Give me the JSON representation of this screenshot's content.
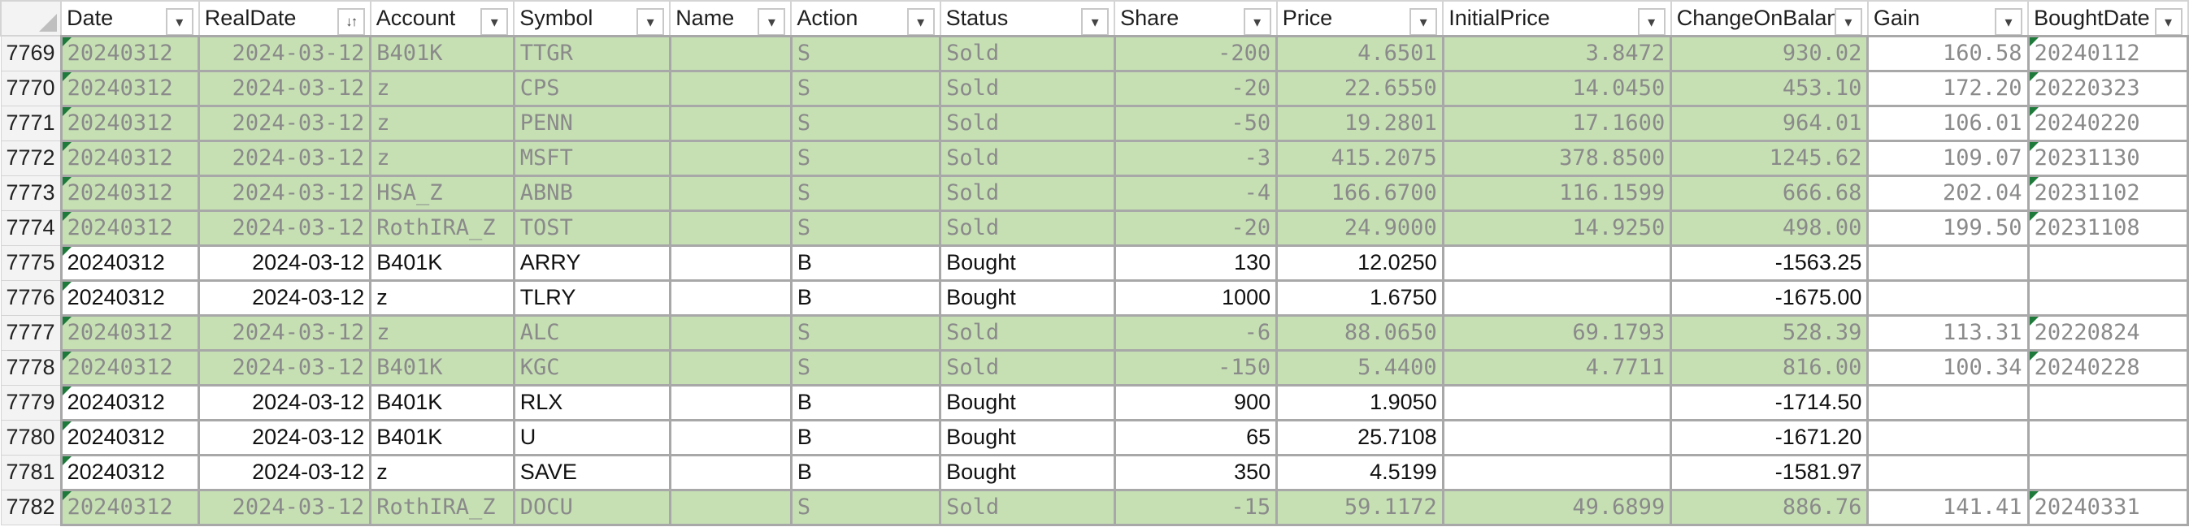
{
  "columns": [
    {
      "label": "Date",
      "sorted": false
    },
    {
      "label": "RealDate",
      "sorted": true
    },
    {
      "label": "Account",
      "sorted": false
    },
    {
      "label": "Symbol",
      "sorted": false
    },
    {
      "label": "Name",
      "sorted": false
    },
    {
      "label": "Action",
      "sorted": false
    },
    {
      "label": "Status",
      "sorted": false
    },
    {
      "label": "Share",
      "sorted": false
    },
    {
      "label": "Price",
      "sorted": false
    },
    {
      "label": "InitialPrice",
      "sorted": false
    },
    {
      "label": "ChangeOnBalance",
      "sorted": false
    },
    {
      "label": "Gain",
      "sorted": false
    },
    {
      "label": "BoughtDate",
      "sorted": false
    }
  ],
  "icons": {
    "filter_icon": "▾",
    "sort_icon": "↓↑"
  },
  "colors": {
    "sold_fill": "#c6e0b4",
    "bought_fill": "#ffffff",
    "comment_marker": "#1e7a3a"
  },
  "rows": [
    {
      "num": "7769",
      "date": "20240312",
      "real_date": "2024-03-12",
      "account": "B401K",
      "symbol": "TTGR",
      "name": "",
      "action": "S",
      "status": "Sold",
      "share": "-200",
      "price": "4.6501",
      "initial_price": "3.8472",
      "change": "930.02",
      "gain": "160.58",
      "bought_date": "20240112",
      "kind": "sold"
    },
    {
      "num": "7770",
      "date": "20240312",
      "real_date": "2024-03-12",
      "account": "z",
      "symbol": "CPS",
      "name": "",
      "action": "S",
      "status": "Sold",
      "share": "-20",
      "price": "22.6550",
      "initial_price": "14.0450",
      "change": "453.10",
      "gain": "172.20",
      "bought_date": "20220323",
      "kind": "sold"
    },
    {
      "num": "7771",
      "date": "20240312",
      "real_date": "2024-03-12",
      "account": "z",
      "symbol": "PENN",
      "name": "",
      "action": "S",
      "status": "Sold",
      "share": "-50",
      "price": "19.2801",
      "initial_price": "17.1600",
      "change": "964.01",
      "gain": "106.01",
      "bought_date": "20240220",
      "kind": "sold"
    },
    {
      "num": "7772",
      "date": "20240312",
      "real_date": "2024-03-12",
      "account": "z",
      "symbol": "MSFT",
      "name": "",
      "action": "S",
      "status": "Sold",
      "share": "-3",
      "price": "415.2075",
      "initial_price": "378.8500",
      "change": "1245.62",
      "gain": "109.07",
      "bought_date": "20231130",
      "kind": "sold"
    },
    {
      "num": "7773",
      "date": "20240312",
      "real_date": "2024-03-12",
      "account": "HSA_Z",
      "symbol": "ABNB",
      "name": "",
      "action": "S",
      "status": "Sold",
      "share": "-4",
      "price": "166.6700",
      "initial_price": "116.1599",
      "change": "666.68",
      "gain": "202.04",
      "bought_date": "20231102",
      "kind": "sold"
    },
    {
      "num": "7774",
      "date": "20240312",
      "real_date": "2024-03-12",
      "account": "RothIRA_Z",
      "symbol": "TOST",
      "name": "",
      "action": "S",
      "status": "Sold",
      "share": "-20",
      "price": "24.9000",
      "initial_price": "14.9250",
      "change": "498.00",
      "gain": "199.50",
      "bought_date": "20231108",
      "kind": "sold"
    },
    {
      "num": "7775",
      "date": "20240312",
      "real_date": "2024-03-12",
      "account": "B401K",
      "symbol": "ARRY",
      "name": "",
      "action": "B",
      "status": "Bought",
      "share": "130",
      "price": "12.0250",
      "initial_price": "",
      "change": "-1563.25",
      "gain": "",
      "bought_date": "",
      "kind": "bought"
    },
    {
      "num": "7776",
      "date": "20240312",
      "real_date": "2024-03-12",
      "account": "z",
      "symbol": "TLRY",
      "name": "",
      "action": "B",
      "status": "Bought",
      "share": "1000",
      "price": "1.6750",
      "initial_price": "",
      "change": "-1675.00",
      "gain": "",
      "bought_date": "",
      "kind": "bought"
    },
    {
      "num": "7777",
      "date": "20240312",
      "real_date": "2024-03-12",
      "account": "z",
      "symbol": "ALC",
      "name": "",
      "action": "S",
      "status": "Sold",
      "share": "-6",
      "price": "88.0650",
      "initial_price": "69.1793",
      "change": "528.39",
      "gain": "113.31",
      "bought_date": "20220824",
      "kind": "sold"
    },
    {
      "num": "7778",
      "date": "20240312",
      "real_date": "2024-03-12",
      "account": "B401K",
      "symbol": "KGC",
      "name": "",
      "action": "S",
      "status": "Sold",
      "share": "-150",
      "price": "5.4400",
      "initial_price": "4.7711",
      "change": "816.00",
      "gain": "100.34",
      "bought_date": "20240228",
      "kind": "sold"
    },
    {
      "num": "7779",
      "date": "20240312",
      "real_date": "2024-03-12",
      "account": "B401K",
      "symbol": "RLX",
      "name": "",
      "action": "B",
      "status": "Bought",
      "share": "900",
      "price": "1.9050",
      "initial_price": "",
      "change": "-1714.50",
      "gain": "",
      "bought_date": "",
      "kind": "bought"
    },
    {
      "num": "7780",
      "date": "20240312",
      "real_date": "2024-03-12",
      "account": "B401K",
      "symbol": "U",
      "name": "",
      "action": "B",
      "status": "Bought",
      "share": "65",
      "price": "25.7108",
      "initial_price": "",
      "change": "-1671.20",
      "gain": "",
      "bought_date": "",
      "kind": "bought"
    },
    {
      "num": "7781",
      "date": "20240312",
      "real_date": "2024-03-12",
      "account": "z",
      "symbol": "SAVE",
      "name": "",
      "action": "B",
      "status": "Bought",
      "share": "350",
      "price": "4.5199",
      "initial_price": "",
      "change": "-1581.97",
      "gain": "",
      "bought_date": "",
      "kind": "bought"
    },
    {
      "num": "7782",
      "date": "20240312",
      "real_date": "2024-03-12",
      "account": "RothIRA_Z",
      "symbol": "DOCU",
      "name": "",
      "action": "S",
      "status": "Sold",
      "share": "-15",
      "price": "59.1172",
      "initial_price": "49.6899",
      "change": "886.76",
      "gain": "141.41",
      "bought_date": "20240331",
      "kind": "sold"
    }
  ]
}
